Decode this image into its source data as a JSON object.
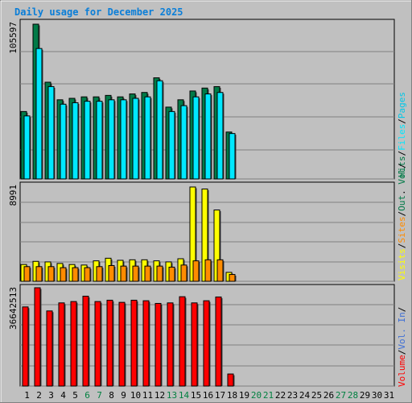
{
  "title": "Daily usage for December 2025",
  "colors": {
    "hits": "#007a47",
    "files": "#00e8ff",
    "pages": "#00c8e8",
    "visits": "#ffff00",
    "sites": "#ff8c00",
    "volume": "#ff0000",
    "weekday": "#000000",
    "weekend": "#008040"
  },
  "chart_data": [
    {
      "type": "bar",
      "name": "hits-files-panel",
      "max_label": "105597",
      "ylim": [
        0,
        105597
      ],
      "categories": [
        "1",
        "2",
        "3",
        "4",
        "5",
        "6",
        "7",
        "8",
        "9",
        "10",
        "11",
        "12",
        "13",
        "14",
        "15",
        "16",
        "17",
        "18",
        "19",
        "20",
        "21",
        "22",
        "23",
        "24",
        "25",
        "26",
        "27",
        "28",
        "29",
        "30",
        "31"
      ],
      "series": [
        {
          "name": "Hits",
          "color": "#007a47",
          "values": [
            46000,
            105597,
            66000,
            54000,
            55000,
            56000,
            56000,
            57000,
            56000,
            58000,
            59000,
            69000,
            49000,
            54000,
            60000,
            62000,
            63000,
            32000,
            null,
            null,
            null,
            null,
            null,
            null,
            null,
            null,
            null,
            null,
            null,
            null,
            null
          ]
        },
        {
          "name": "Files",
          "color": "#00e8ff",
          "values": [
            43000,
            89000,
            63000,
            51000,
            52000,
            53000,
            53000,
            54000,
            54000,
            55000,
            56000,
            67000,
            46000,
            50000,
            56000,
            58000,
            59000,
            31000,
            null,
            null,
            null,
            null,
            null,
            null,
            null,
            null,
            null,
            null,
            null,
            null,
            null
          ]
        }
      ]
    },
    {
      "type": "bar",
      "name": "visits-sites-panel",
      "max_label": "8991",
      "ylim": [
        0,
        8991
      ],
      "categories": [
        "1",
        "2",
        "3",
        "4",
        "5",
        "6",
        "7",
        "8",
        "9",
        "10",
        "11",
        "12",
        "13",
        "14",
        "15",
        "16",
        "17",
        "18",
        "19",
        "20",
        "21",
        "22",
        "23",
        "24",
        "25",
        "26",
        "27",
        "28",
        "29",
        "30",
        "31"
      ],
      "series": [
        {
          "name": "Visits",
          "color": "#ffff00",
          "values": [
            1600,
            1900,
            1850,
            1700,
            1600,
            1550,
            1950,
            2200,
            2000,
            2050,
            2050,
            1950,
            1850,
            2150,
            8991,
            8800,
            6800,
            850,
            null,
            null,
            null,
            null,
            null,
            null,
            null,
            null,
            null,
            null,
            null,
            null,
            null
          ]
        },
        {
          "name": "Sites",
          "color": "#ff8c00",
          "values": [
            1400,
            1400,
            1400,
            1300,
            1300,
            1300,
            1400,
            1500,
            1450,
            1450,
            1450,
            1450,
            1350,
            1550,
            1950,
            2050,
            2050,
            650,
            null,
            null,
            null,
            null,
            null,
            null,
            null,
            null,
            null,
            null,
            null,
            null,
            null
          ]
        }
      ]
    },
    {
      "type": "bar",
      "name": "volume-panel",
      "max_label": "36642513",
      "ylim": [
        0,
        36642513
      ],
      "categories": [
        "1",
        "2",
        "3",
        "4",
        "5",
        "6",
        "7",
        "8",
        "9",
        "10",
        "11",
        "12",
        "13",
        "14",
        "15",
        "16",
        "17",
        "18",
        "19",
        "20",
        "21",
        "22",
        "23",
        "24",
        "25",
        "26",
        "27",
        "28",
        "29",
        "30",
        "31"
      ],
      "series": [
        {
          "name": "Volume",
          "color": "#ff0000",
          "values": [
            29500,
            36642,
            28000,
            31000,
            31500,
            33500,
            31500,
            32000,
            31200,
            32000,
            31800,
            30800,
            31000,
            33300,
            31000,
            31800,
            33200,
            4500,
            null,
            null,
            null,
            null,
            null,
            null,
            null,
            null,
            null,
            null,
            null,
            null,
            null
          ]
        }
      ]
    }
  ],
  "weekend_days": [
    "6",
    "7",
    "13",
    "14",
    "20",
    "21",
    "27",
    "28"
  ],
  "legend_top": [
    {
      "text": "Hits",
      "color": "#007a47"
    },
    {
      "text": "/",
      "color": "#000000"
    },
    {
      "text": "Files",
      "color": "#00e8ff"
    },
    {
      "text": "/",
      "color": "#000000"
    },
    {
      "text": "Pages",
      "color": "#00c8e8"
    }
  ],
  "legend_mid": [
    {
      "text": "Visits",
      "color": "#ffff00"
    },
    {
      "text": "/",
      "color": "#000000"
    },
    {
      "text": "Sites",
      "color": "#ff8c00"
    },
    {
      "text": "/",
      "color": "#000000"
    },
    {
      "text": "Out",
      "color": "#007a47"
    },
    {
      "text": ". ",
      "color": "#000000"
    },
    {
      "text": "Vol",
      "color": "#007a47"
    },
    {
      "text": "/",
      "color": "#000000"
    }
  ],
  "legend_bot": [
    {
      "text": "Volume",
      "color": "#ff0000"
    },
    {
      "text": "/",
      "color": "#000000"
    },
    {
      "text": "Vol. In",
      "color": "#3d6fd6"
    },
    {
      "text": "/",
      "color": "#000000"
    }
  ]
}
